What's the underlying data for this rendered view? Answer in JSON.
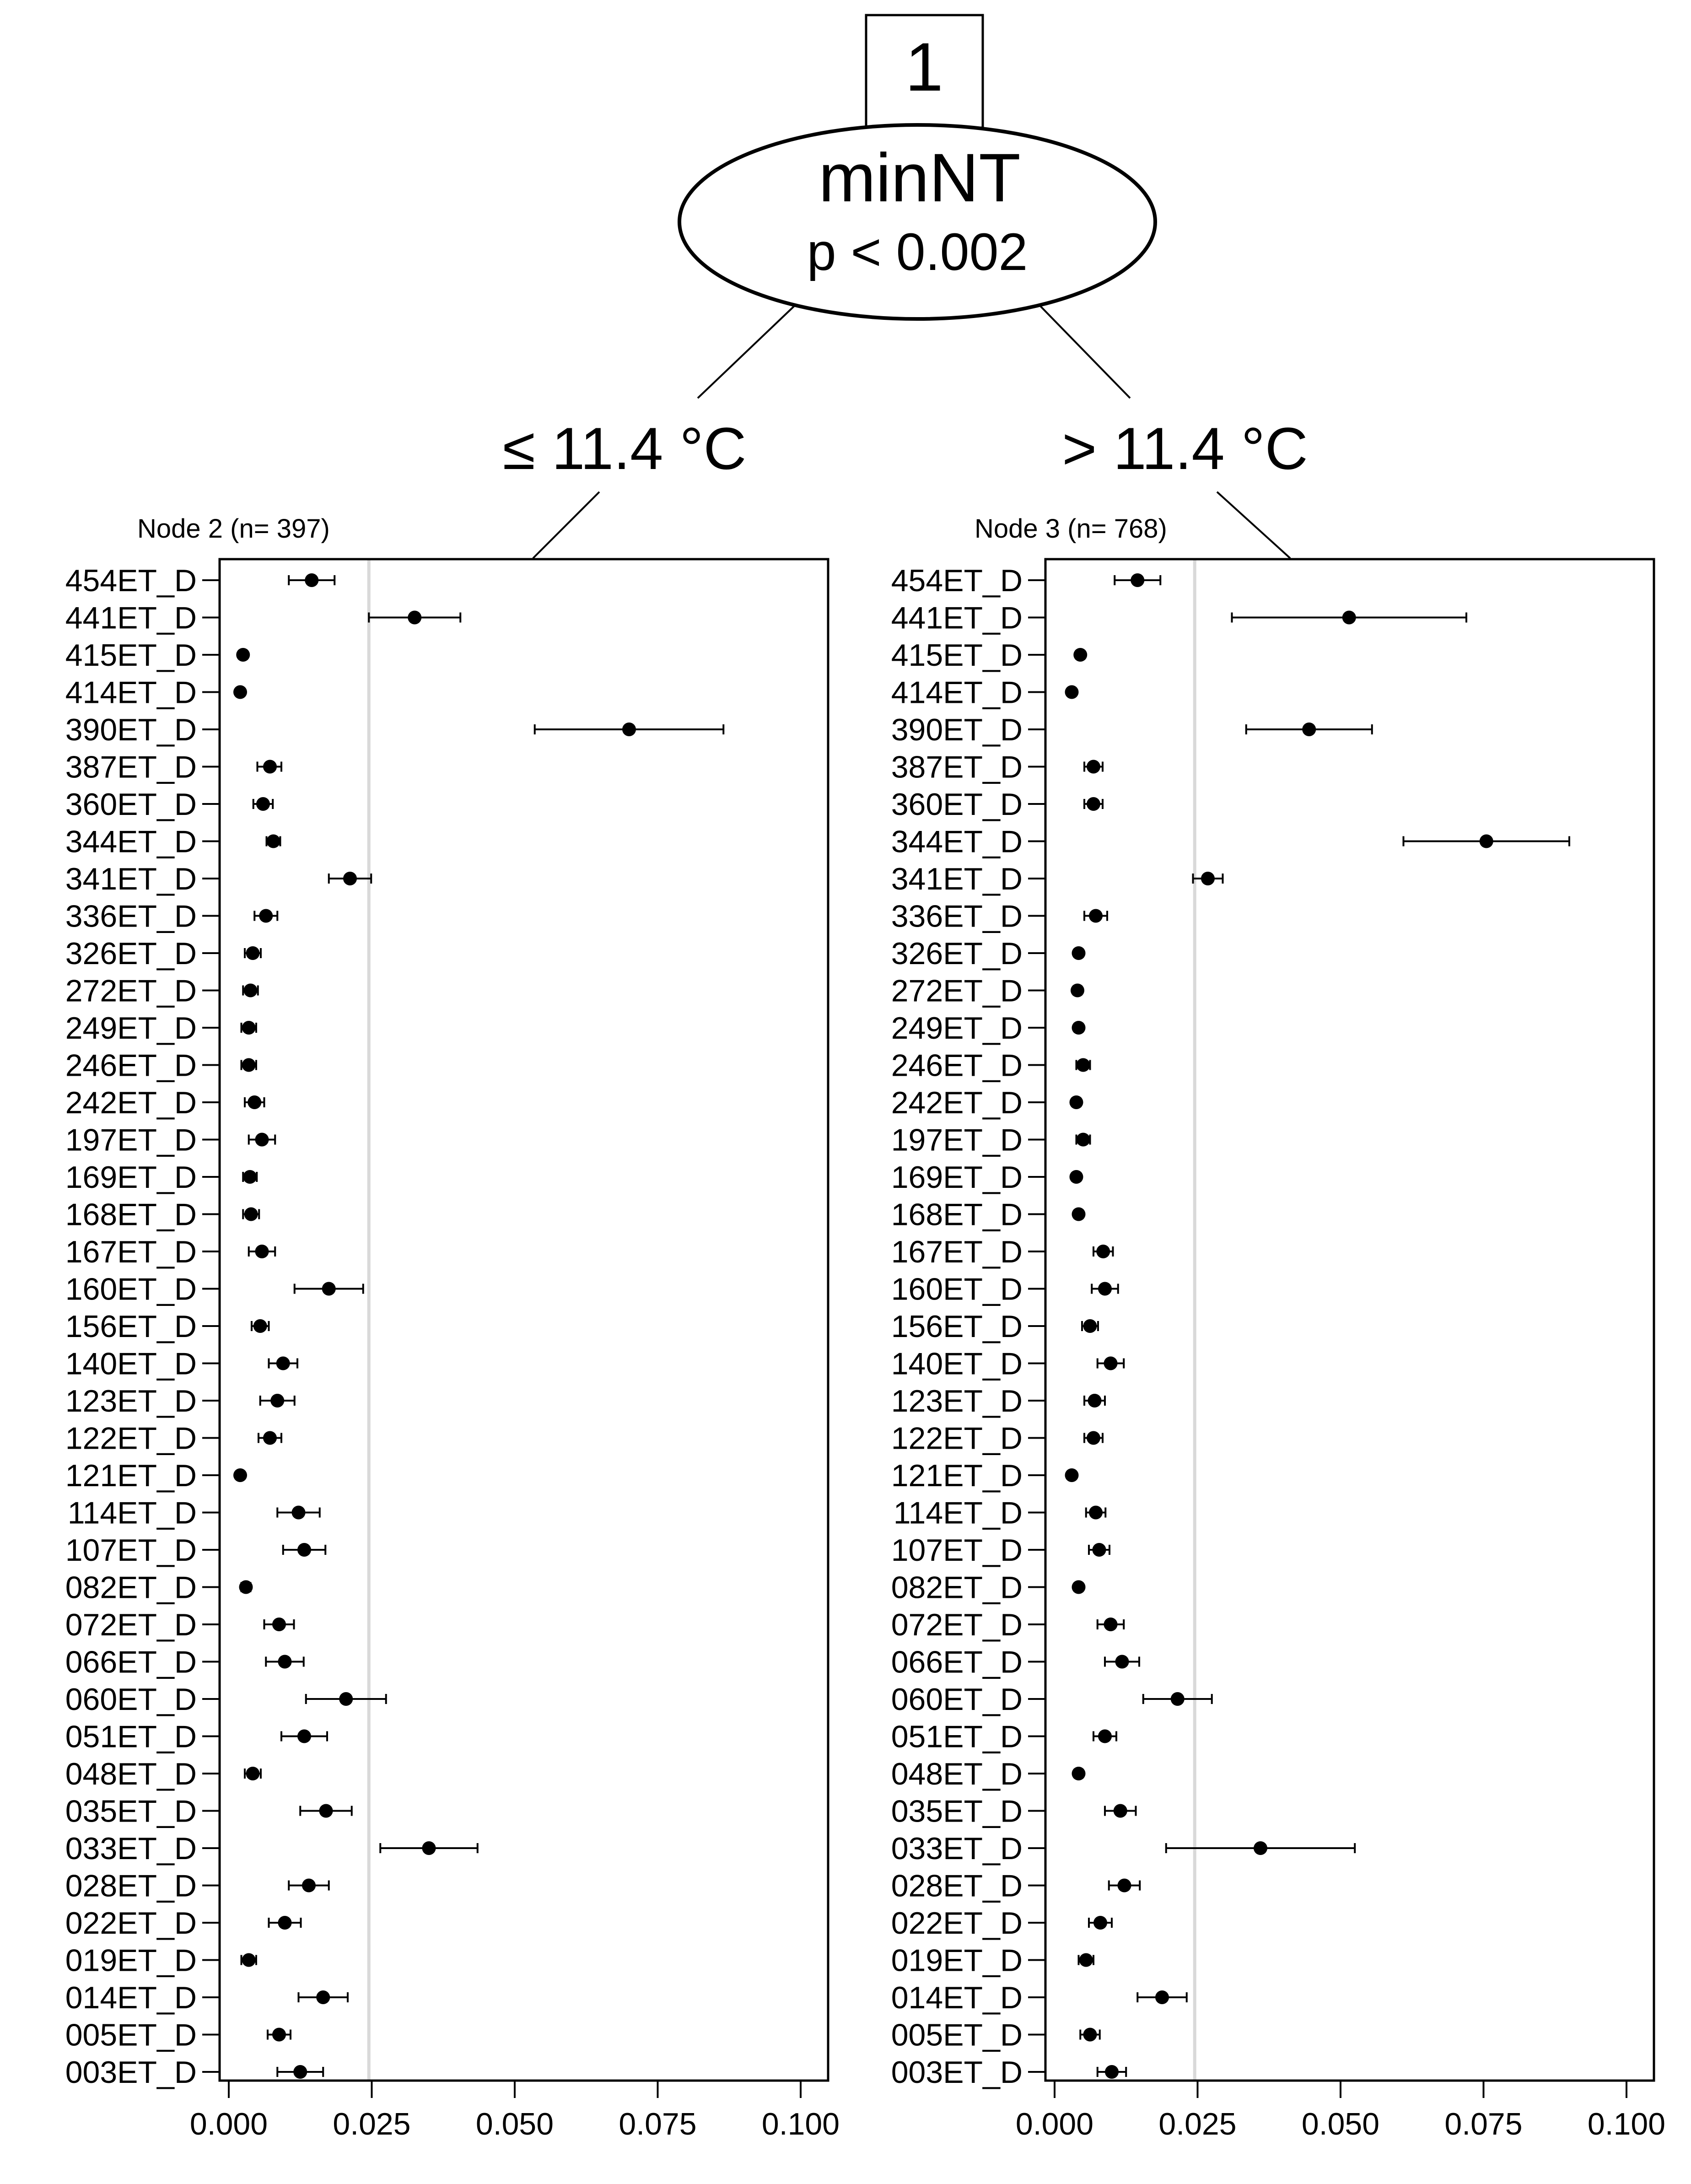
{
  "tree": {
    "node_id": "1",
    "split_variable": "minNT",
    "p_value": "p < 0.002",
    "left_edge_label": "≤ 11.4 °C",
    "right_edge_label": "> 11.4 °C"
  },
  "chart_data": [
    {
      "type": "scatter",
      "title": "Node 2 (n= 397)",
      "xlim": [
        0,
        0.1
      ],
      "x_ticks": [
        "0.000",
        "0.025",
        "0.050",
        "0.075",
        "0.100"
      ],
      "reference_line": 0.0245,
      "categories": [
        "454ET_D",
        "441ET_D",
        "415ET_D",
        "414ET_D",
        "390ET_D",
        "387ET_D",
        "360ET_D",
        "344ET_D",
        "341ET_D",
        "336ET_D",
        "326ET_D",
        "272ET_D",
        "249ET_D",
        "246ET_D",
        "242ET_D",
        "197ET_D",
        "169ET_D",
        "168ET_D",
        "167ET_D",
        "160ET_D",
        "156ET_D",
        "140ET_D",
        "123ET_D",
        "122ET_D",
        "121ET_D",
        "114ET_D",
        "107ET_D",
        "082ET_D",
        "072ET_D",
        "066ET_D",
        "060ET_D",
        "051ET_D",
        "048ET_D",
        "035ET_D",
        "033ET_D",
        "028ET_D",
        "022ET_D",
        "019ET_D",
        "014ET_D",
        "005ET_D",
        "003ET_D"
      ],
      "values": [
        0.0145,
        0.0325,
        0.0025,
        0.002,
        0.07,
        0.0072,
        0.006,
        0.0078,
        0.0212,
        0.0065,
        0.0042,
        0.0038,
        0.0035,
        0.0035,
        0.0045,
        0.0058,
        0.0037,
        0.0039,
        0.0058,
        0.0175,
        0.0055,
        0.0095,
        0.0085,
        0.0072,
        0.002,
        0.0122,
        0.0132,
        0.003,
        0.0088,
        0.0098,
        0.0205,
        0.0132,
        0.0042,
        0.017,
        0.035,
        0.014,
        0.0098,
        0.0035,
        0.0165,
        0.0088,
        0.0125
      ],
      "lower": [
        0.0105,
        0.0245,
        0.0018,
        0.0014,
        0.0535,
        0.005,
        0.0043,
        0.0066,
        0.0175,
        0.0045,
        0.0028,
        0.0025,
        0.0022,
        0.0022,
        0.0028,
        0.0035,
        0.0025,
        0.0025,
        0.0035,
        0.0115,
        0.004,
        0.007,
        0.0055,
        0.0052,
        0.0014,
        0.0085,
        0.0095,
        0.0022,
        0.0062,
        0.0065,
        0.0135,
        0.0092,
        0.0028,
        0.0125,
        0.0265,
        0.0105,
        0.007,
        0.0022,
        0.0122,
        0.0068,
        0.0085
      ],
      "upper": [
        0.0185,
        0.0405,
        0.0032,
        0.0026,
        0.0865,
        0.0092,
        0.0077,
        0.009,
        0.0249,
        0.0085,
        0.0056,
        0.0051,
        0.0048,
        0.0048,
        0.0062,
        0.0081,
        0.0049,
        0.0053,
        0.0081,
        0.0235,
        0.007,
        0.012,
        0.0115,
        0.0092,
        0.0026,
        0.0159,
        0.0169,
        0.0038,
        0.0114,
        0.0131,
        0.0275,
        0.0172,
        0.0056,
        0.0215,
        0.0435,
        0.0175,
        0.0126,
        0.0048,
        0.0208,
        0.0108,
        0.0165
      ]
    },
    {
      "type": "scatter",
      "title": "Node 3 (n= 768)",
      "xlim": [
        0,
        0.1
      ],
      "x_ticks": [
        "0.000",
        "0.025",
        "0.050",
        "0.075",
        "0.100"
      ],
      "reference_line": 0.0245,
      "categories": [
        "454ET_D",
        "441ET_D",
        "415ET_D",
        "414ET_D",
        "390ET_D",
        "387ET_D",
        "360ET_D",
        "344ET_D",
        "341ET_D",
        "336ET_D",
        "326ET_D",
        "272ET_D",
        "249ET_D",
        "246ET_D",
        "242ET_D",
        "197ET_D",
        "169ET_D",
        "168ET_D",
        "167ET_D",
        "160ET_D",
        "156ET_D",
        "140ET_D",
        "123ET_D",
        "122ET_D",
        "121ET_D",
        "114ET_D",
        "107ET_D",
        "082ET_D",
        "072ET_D",
        "066ET_D",
        "060ET_D",
        "051ET_D",
        "048ET_D",
        "035ET_D",
        "033ET_D",
        "028ET_D",
        "022ET_D",
        "019ET_D",
        "014ET_D",
        "005ET_D",
        "003ET_D"
      ],
      "values": [
        0.0145,
        0.0515,
        0.0045,
        0.003,
        0.0445,
        0.0068,
        0.0068,
        0.0755,
        0.0268,
        0.0072,
        0.0042,
        0.004,
        0.0042,
        0.005,
        0.0038,
        0.005,
        0.0038,
        0.0042,
        0.0085,
        0.0088,
        0.0062,
        0.0098,
        0.007,
        0.0068,
        0.003,
        0.0072,
        0.0078,
        0.0042,
        0.0098,
        0.0118,
        0.0215,
        0.0088,
        0.0042,
        0.0115,
        0.036,
        0.0122,
        0.008,
        0.0055,
        0.0188,
        0.0062,
        0.01
      ],
      "lower": [
        0.0105,
        0.031,
        0.0038,
        0.0024,
        0.0335,
        0.0052,
        0.0052,
        0.061,
        0.0242,
        0.0052,
        0.0035,
        0.0033,
        0.0035,
        0.0038,
        0.0031,
        0.0038,
        0.0031,
        0.0035,
        0.0068,
        0.0065,
        0.0048,
        0.0075,
        0.0052,
        0.0052,
        0.0024,
        0.0055,
        0.006,
        0.0035,
        0.0075,
        0.0088,
        0.0155,
        0.0068,
        0.0035,
        0.0088,
        0.0195,
        0.0095,
        0.006,
        0.0042,
        0.0145,
        0.0045,
        0.0075
      ],
      "upper": [
        0.0185,
        0.072,
        0.0052,
        0.0036,
        0.0555,
        0.0084,
        0.0084,
        0.09,
        0.0294,
        0.0092,
        0.0049,
        0.0047,
        0.0049,
        0.0062,
        0.0045,
        0.0062,
        0.0045,
        0.0049,
        0.0102,
        0.0111,
        0.0076,
        0.0121,
        0.0088,
        0.0084,
        0.0036,
        0.0089,
        0.0096,
        0.0049,
        0.0121,
        0.0148,
        0.0275,
        0.0108,
        0.0049,
        0.0142,
        0.0525,
        0.0149,
        0.01,
        0.0068,
        0.0231,
        0.0079,
        0.0125
      ]
    }
  ]
}
